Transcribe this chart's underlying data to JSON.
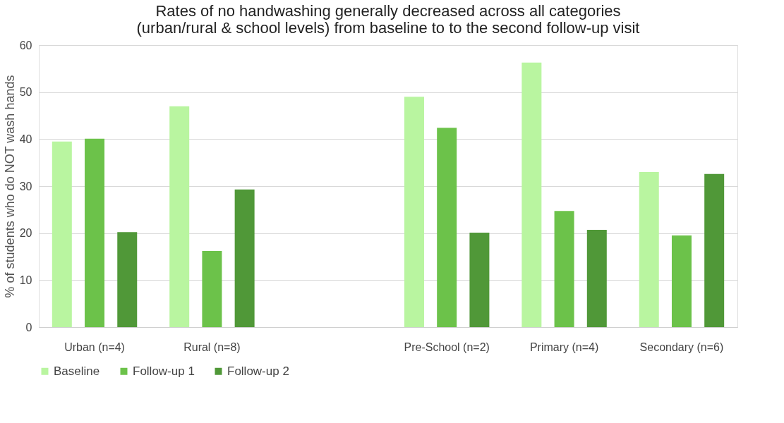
{
  "chart_data": {
    "type": "bar",
    "title": "Rates of no handwashing generally decreased across all categories\n(urban/rural & school levels) from baseline to to the second follow-up visit",
    "ylabel": "% of students who do NOT wash hands",
    "categories": [
      "Urban (n=4)",
      "Rural (n=8)",
      null,
      "Pre-School (n=2)",
      "Primary (n=4)",
      "Secondary (n=6)"
    ],
    "series": [
      {
        "name": "Baseline",
        "color": "#b9f5a0",
        "values": [
          39.5,
          47.0,
          null,
          49.0,
          56.3,
          33.0
        ]
      },
      {
        "name": "Follow-up 1",
        "color": "#6cc24a",
        "values": [
          40.1,
          16.2,
          null,
          42.4,
          24.7,
          19.5
        ]
      },
      {
        "name": "Follow-up 2",
        "color": "#509838",
        "values": [
          20.2,
          29.3,
          null,
          20.1,
          20.7,
          32.6
        ]
      }
    ],
    "ylim": [
      0,
      60
    ],
    "yticks": [
      0,
      10,
      20,
      30,
      40,
      50,
      60
    ],
    "grid": "y",
    "legend": "bottom"
  }
}
